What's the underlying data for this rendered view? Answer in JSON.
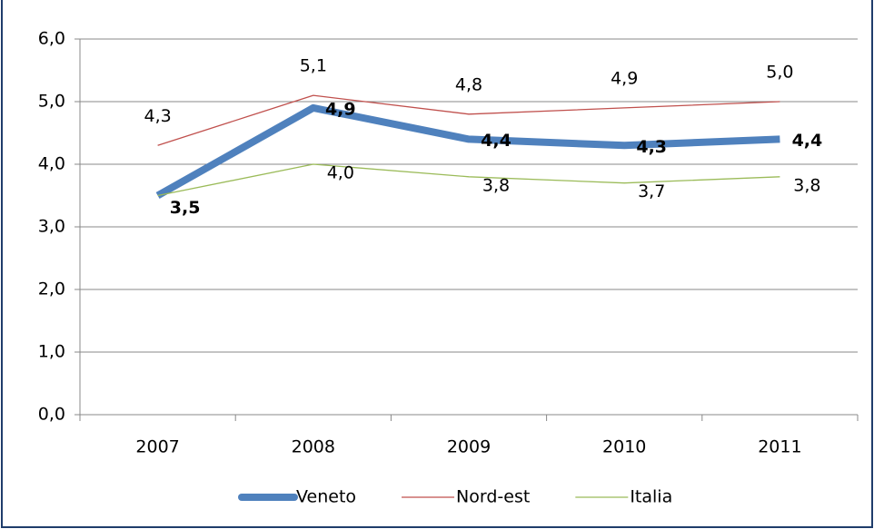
{
  "chart_data": {
    "type": "line",
    "categories": [
      "2007",
      "2008",
      "2009",
      "2010",
      "2011"
    ],
    "series": [
      {
        "name": "Veneto",
        "color": "#4f81bd",
        "values": [
          3.5,
          4.9,
          4.4,
          4.3,
          4.4
        ],
        "value_labels": [
          "3,5",
          "4,9",
          "4,4",
          "4,3",
          "4,4"
        ]
      },
      {
        "name": "Nord-est",
        "color": "#c0504d",
        "values": [
          4.3,
          5.1,
          4.8,
          4.9,
          5.0
        ],
        "value_labels": [
          "4,3",
          "5,1",
          "4,8",
          "4,9",
          "5,0"
        ]
      },
      {
        "name": "Italia",
        "color": "#9bbb59",
        "values": [
          3.5,
          4.0,
          3.8,
          3.7,
          3.8
        ],
        "value_labels": [
          null,
          "4,0",
          "3,8",
          "3,7",
          "3,8"
        ]
      }
    ],
    "ylim": [
      0,
      6
    ],
    "yticks": [
      {
        "value": 0,
        "label": "0,0"
      },
      {
        "value": 1,
        "label": "1,0"
      },
      {
        "value": 2,
        "label": "2,0"
      },
      {
        "value": 3,
        "label": "3,0"
      },
      {
        "value": 4,
        "label": "4,0"
      },
      {
        "value": 5,
        "label": "5,0"
      },
      {
        "value": 6,
        "label": "6,0"
      }
    ],
    "grid": true,
    "legend": "bottom"
  }
}
